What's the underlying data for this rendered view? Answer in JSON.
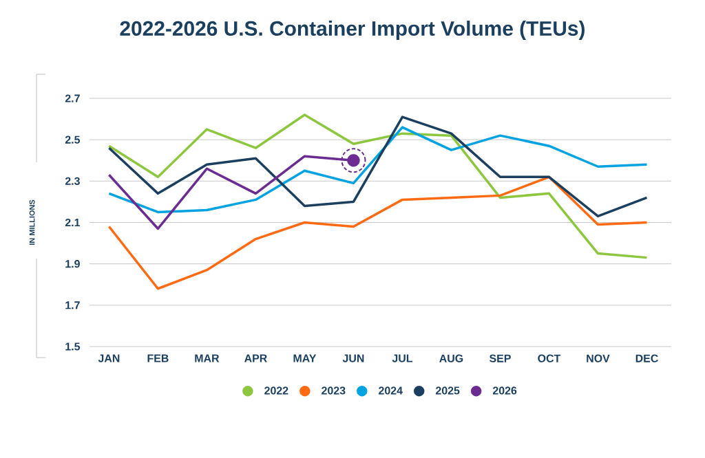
{
  "chart_data": {
    "type": "line",
    "title": "2022-2026 U.S. Container Import Volume (TEUs)",
    "ylabel": "IN MILLIONS",
    "categories": [
      "JAN",
      "FEB",
      "MAR",
      "APR",
      "MAY",
      "JUN",
      "JUL",
      "AUG",
      "SEP",
      "OCT",
      "NOV",
      "DEC"
    ],
    "series": [
      {
        "name": "2022",
        "color": "#8dc63f",
        "values": [
          2.47,
          2.32,
          2.55,
          2.46,
          2.62,
          2.48,
          2.53,
          2.52,
          2.22,
          2.24,
          1.95,
          1.93
        ]
      },
      {
        "name": "2023",
        "color": "#ff6a13",
        "values": [
          2.08,
          1.78,
          1.87,
          2.02,
          2.1,
          2.08,
          2.21,
          2.22,
          2.23,
          2.32,
          2.09,
          2.1
        ]
      },
      {
        "name": "2024",
        "color": "#00a3e0",
        "values": [
          2.24,
          2.15,
          2.16,
          2.21,
          2.35,
          2.29,
          2.56,
          2.45,
          2.52,
          2.47,
          2.37,
          2.38
        ]
      },
      {
        "name": "2025",
        "color": "#1b3f5e",
        "values": [
          2.46,
          2.24,
          2.38,
          2.41,
          2.18,
          2.2,
          2.61,
          2.53,
          2.32,
          2.32,
          2.13,
          2.22
        ]
      },
      {
        "name": "2026",
        "color": "#6a2c91",
        "values": [
          2.33,
          2.07,
          2.36,
          2.24,
          2.42,
          2.4,
          null,
          null,
          null,
          null,
          null,
          null
        ]
      },
      {
        "type": "scatter",
        "color": "#6a2c91",
        "marker": "circle",
        "x": [
          "JUN"
        ],
        "values": [
          2.4
        ]
      }
    ],
    "ylim": [
      1.5,
      2.7
    ],
    "yticks": [
      1.5,
      1.7,
      1.9,
      2.1,
      2.3,
      2.5,
      2.7
    ],
    "grid": "y",
    "legend": "bottom",
    "marker": "none",
    "line_style": "solid"
  }
}
